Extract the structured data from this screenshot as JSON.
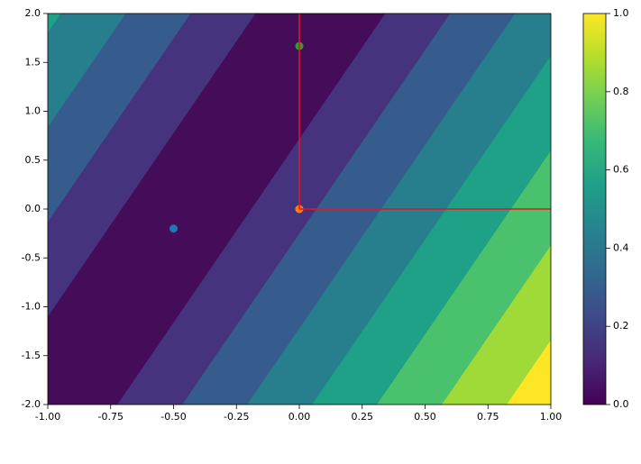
{
  "chart_data": {
    "type": "contour",
    "xlim": [
      -1,
      1
    ],
    "ylim": [
      -2,
      2
    ],
    "xticks": [
      {
        "value": -1,
        "label": "-1.00"
      },
      {
        "value": -0.75,
        "label": "-0.75"
      },
      {
        "value": -0.5,
        "label": "-0.50"
      },
      {
        "value": -0.25,
        "label": "-0.25"
      },
      {
        "value": 0,
        "label": "0.00"
      },
      {
        "value": 0.25,
        "label": "0.25"
      },
      {
        "value": 0.5,
        "label": "0.50"
      },
      {
        "value": 0.75,
        "label": "0.75"
      },
      {
        "value": 1,
        "label": "1.00"
      }
    ],
    "yticks": [
      {
        "value": -2,
        "label": "-2.0"
      },
      {
        "value": -1.5,
        "label": "-1.5"
      },
      {
        "value": -1,
        "label": "-1.0"
      },
      {
        "value": -0.5,
        "label": "-0.5"
      },
      {
        "value": 0,
        "label": "0.0"
      },
      {
        "value": 0.5,
        "label": "0.5"
      },
      {
        "value": 1,
        "label": "1.0"
      },
      {
        "value": 1.5,
        "label": "1.5"
      },
      {
        "value": 2,
        "label": "2.0"
      }
    ],
    "contours": [
      {
        "color": "#1fa187",
        "x": [
          -2.27,
          -2.012,
          -0.947,
          -1.205
        ],
        "y": [
          -2,
          -2,
          2,
          2
        ]
      },
      {
        "color": "#277f8e",
        "x": [
          -2.012,
          -1.754,
          -0.689,
          -0.947
        ],
        "y": [
          -2,
          -2,
          2,
          2
        ]
      },
      {
        "color": "#365c8d",
        "x": [
          -1.754,
          -1.496,
          -0.431,
          -0.689
        ],
        "y": [
          -2,
          -2,
          2,
          2
        ]
      },
      {
        "color": "#46337e",
        "x": [
          -1.496,
          -1.238,
          -0.173,
          -0.431
        ],
        "y": [
          -2,
          -2,
          2,
          2
        ]
      },
      {
        "color": "#450c5a",
        "x": [
          -1.238,
          -0.722,
          0.343,
          -0.173
        ],
        "y": [
          -2,
          -2,
          2,
          2
        ]
      },
      {
        "color": "#46337e",
        "x": [
          -0.722,
          -0.464,
          0.601,
          0.343
        ],
        "y": [
          -2,
          -2,
          2,
          2
        ]
      },
      {
        "color": "#365c8d",
        "x": [
          -0.464,
          -0.206,
          0.859,
          0.601
        ],
        "y": [
          -2,
          -2,
          2,
          2
        ]
      },
      {
        "color": "#277f8e",
        "x": [
          -0.206,
          0.052,
          1.117,
          0.859
        ],
        "y": [
          -2,
          -2,
          2,
          2
        ]
      },
      {
        "color": "#1fa187",
        "x": [
          0.052,
          0.31,
          1.375,
          1.117
        ],
        "y": [
          -2,
          -2,
          2,
          2
        ]
      },
      {
        "color": "#4ac16d",
        "x": [
          0.31,
          0.568,
          1.633,
          1.375
        ],
        "y": [
          -2,
          -2,
          2,
          2
        ]
      },
      {
        "color": "#a0da39",
        "x": [
          0.568,
          0.826,
          1.891,
          1.633
        ],
        "y": [
          -2,
          -2,
          2,
          2
        ]
      },
      {
        "color": "#fde725",
        "x": [
          0.826,
          1.084,
          2.149,
          1.891
        ],
        "y": [
          -2,
          -2,
          2,
          2
        ]
      }
    ],
    "points": [
      {
        "x": -0.5,
        "y": -0.2,
        "color": "#1f77b4"
      },
      {
        "x": 0,
        "y": 0,
        "color": "#ff7f0e"
      },
      {
        "x": 0,
        "y": 1.667,
        "color": "#2ca02c"
      }
    ],
    "lines": [
      {
        "x": [
          0,
          0
        ],
        "y": [
          0,
          2
        ],
        "color": "#e8141c"
      },
      {
        "x": [
          0,
          1
        ],
        "y": [
          0,
          0
        ],
        "color": "#e8141c"
      }
    ],
    "colorbar": {
      "lim": [
        0,
        1
      ],
      "colors": [
        "#440154",
        "#482878",
        "#3e4989",
        "#31688e",
        "#26828e",
        "#1f9e89",
        "#35b779",
        "#6ece58",
        "#b5de2b",
        "#fde725"
      ],
      "ticks": [
        {
          "value": 0,
          "label": "0.0"
        },
        {
          "value": 0.2,
          "label": "0.2"
        },
        {
          "value": 0.4,
          "label": "0.4"
        },
        {
          "value": 0.6,
          "label": "0.6"
        },
        {
          "value": 0.8,
          "label": "0.8"
        },
        {
          "value": 1,
          "label": "1.0"
        }
      ]
    }
  }
}
